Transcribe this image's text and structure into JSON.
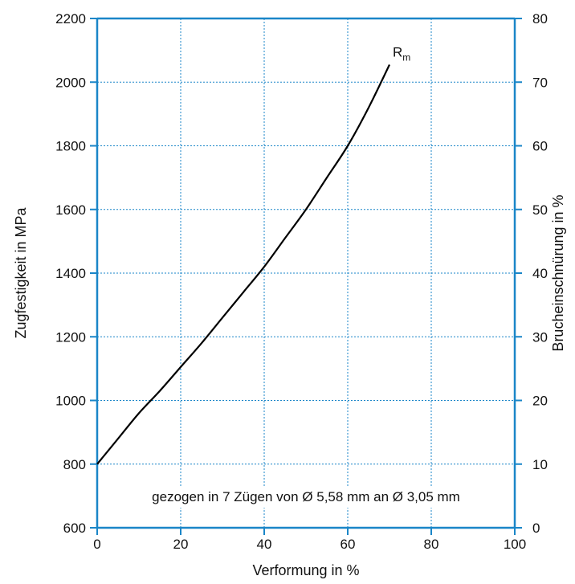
{
  "chart_data": {
    "type": "line",
    "xlabel": "Verformung in %",
    "ylabel": "Zugfestigkeit in MPa",
    "y2label": "Brucheinschnürung in %",
    "xlim": [
      0,
      100
    ],
    "ylim": [
      600,
      2200
    ],
    "y2lim": [
      0,
      80
    ],
    "x_ticks": [
      "0",
      "20",
      "40",
      "60",
      "80",
      "100"
    ],
    "y_ticks": [
      "600",
      "800",
      "1000",
      "1200",
      "1400",
      "1600",
      "1800",
      "2000",
      "2200"
    ],
    "y2_ticks": [
      "0",
      "10",
      "20",
      "30",
      "40",
      "50",
      "60",
      "70",
      "80"
    ],
    "grid": true,
    "series": [
      {
        "name": "Rm",
        "name_main": "R",
        "name_sub": "m",
        "axis": "left",
        "color": "#000000",
        "x": [
          0,
          5,
          10,
          15,
          20,
          25,
          30,
          35,
          40,
          45,
          50,
          55,
          60,
          65,
          70
        ],
        "y": [
          800,
          880,
          960,
          1030,
          1105,
          1180,
          1260,
          1340,
          1420,
          1510,
          1600,
          1700,
          1800,
          1920,
          2055
        ]
      }
    ],
    "annotation": "gezogen in 7 Zügen von Ø 5,58 mm an Ø 3,05 mm"
  },
  "colors": {
    "axis": "#1a86c8",
    "grid": "#1a86c8",
    "line": "#000000"
  }
}
